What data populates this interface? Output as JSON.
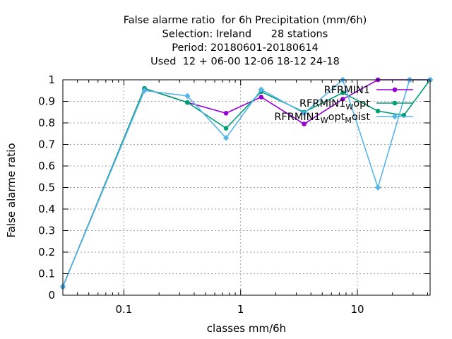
{
  "chart_data": {
    "type": "line",
    "title_lines": [
      "False alarme ratio  for 6h Precipitation (mm/6h)",
      "Selection: Ireland      28 stations",
      "Period: 20180601-20180614",
      "Used  12 + 06-00 12-06 18-12 24-18"
    ],
    "xlabel": "classes mm/6h",
    "ylabel": "False alarme ratio",
    "xscale": "log",
    "xlim": [
      0.03,
      42
    ],
    "ylim": [
      0,
      1
    ],
    "xticks": [
      {
        "value": 0.1,
        "label": "0.1"
      },
      {
        "value": 1,
        "label": "1"
      },
      {
        "value": 10,
        "label": "10"
      }
    ],
    "yticks": [
      {
        "value": 0,
        "label": "0"
      },
      {
        "value": 0.1,
        "label": "0.1"
      },
      {
        "value": 0.2,
        "label": "0.2"
      },
      {
        "value": 0.3,
        "label": "0.3"
      },
      {
        "value": 0.4,
        "label": "0.4"
      },
      {
        "value": 0.5,
        "label": "0.5"
      },
      {
        "value": 0.6,
        "label": "0.6"
      },
      {
        "value": 0.7,
        "label": "0.7"
      },
      {
        "value": 0.8,
        "label": "0.8"
      },
      {
        "value": 0.9,
        "label": "0.9"
      },
      {
        "value": 1,
        "label": "1"
      }
    ],
    "grid": true,
    "legend_position": "top-right",
    "series": [
      {
        "name": "RFRMIN1",
        "legend_parts": [
          {
            "text": "RFRMIN1",
            "sub": false
          }
        ],
        "color": "#9400d3",
        "marker": "circle",
        "points": [
          [
            0.03,
            0.04
          ],
          [
            0.15,
            0.96
          ],
          [
            0.35,
            0.895
          ],
          [
            0.75,
            0.845
          ],
          [
            1.5,
            0.92
          ],
          [
            3.5,
            0.795
          ],
          [
            7.5,
            0.91
          ],
          [
            15,
            1.0
          ],
          [
            28,
            1.0
          ],
          [
            42,
            1.0
          ]
        ]
      },
      {
        "name": "RFRMIN1_W opt",
        "legend_parts": [
          {
            "text": "RFRMIN1",
            "sub": false
          },
          {
            "text": "W",
            "sub": true
          },
          {
            "text": "opt",
            "sub": false
          }
        ],
        "color": "#009e73",
        "marker": "circle",
        "points": [
          [
            0.03,
            0.04
          ],
          [
            0.15,
            0.96
          ],
          [
            0.35,
            0.895
          ],
          [
            0.75,
            0.775
          ],
          [
            1.5,
            0.945
          ],
          [
            3.5,
            0.85
          ],
          [
            7.5,
            0.94
          ],
          [
            15,
            0.855
          ],
          [
            25,
            0.835
          ],
          [
            42,
            1.0
          ]
        ]
      },
      {
        "name": "RFRMIN1_W opt_M oist",
        "legend_parts": [
          {
            "text": "RFRMIN1",
            "sub": false
          },
          {
            "text": "W",
            "sub": true
          },
          {
            "text": "opt",
            "sub": false
          },
          {
            "text": "M",
            "sub": true
          },
          {
            "text": "oist",
            "sub": false
          }
        ],
        "color": "#56b4e9",
        "marker": "diamond",
        "points": [
          [
            0.03,
            0.04
          ],
          [
            0.15,
            0.95
          ],
          [
            0.35,
            0.925
          ],
          [
            0.75,
            0.73
          ],
          [
            1.5,
            0.955
          ],
          [
            3.5,
            0.845
          ],
          [
            7.5,
            1.0
          ],
          [
            15,
            0.5
          ],
          [
            28,
            1.0
          ],
          [
            42,
            1.0
          ]
        ]
      }
    ]
  }
}
